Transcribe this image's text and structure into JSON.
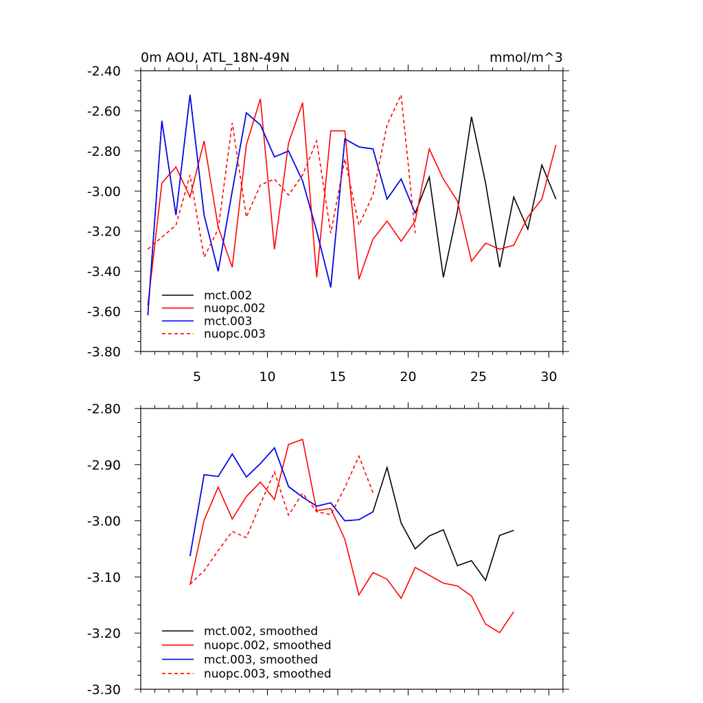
{
  "chart_data": [
    {
      "type": "line",
      "title_left": "0m AOU, ATL_18N-49N",
      "title_right": "mmol/m^3",
      "xlabel": "",
      "ylabel": "",
      "xlim": [
        1,
        31
      ],
      "ylim": [
        -3.8,
        -2.4
      ],
      "x_ticks": [
        5,
        10,
        15,
        20,
        25,
        30
      ],
      "x_tick_labels": [
        "5",
        "10",
        "15",
        "20",
        "25",
        "30"
      ],
      "y_ticks": [
        -2.4,
        -2.6,
        -2.8,
        -3.0,
        -3.2,
        -3.4,
        -3.6,
        -3.8
      ],
      "y_tick_labels": [
        "-2.40",
        "-2.60",
        "-2.80",
        "-3.00",
        "-3.20",
        "-3.40",
        "-3.60",
        "-3.80"
      ],
      "legend_position": "bottom-left",
      "series": [
        {
          "name": "mct.002",
          "color": "#000000",
          "dash": "solid",
          "x": [
            1.5,
            2.5,
            3.5,
            4.5,
            5.5,
            6.5,
            7.5,
            8.5,
            9.5,
            10.5,
            11.5,
            12.5,
            13.5,
            14.5,
            15.5,
            16.5,
            17.5,
            18.5,
            19.5,
            20.5,
            21.5,
            22.5,
            23.5,
            24.5,
            25.5,
            26.5,
            27.5,
            28.5,
            29.5,
            30.5
          ],
          "y": [
            -3.62,
            -2.65,
            -3.12,
            -2.52,
            -3.12,
            -3.4,
            -3.0,
            -2.61,
            -2.67,
            -2.83,
            -2.8,
            -2.95,
            -3.2,
            -3.48,
            -2.74,
            -2.78,
            -2.79,
            -3.04,
            -2.94,
            -3.11,
            -2.93,
            -3.43,
            -3.1,
            -2.63,
            -2.96,
            -3.38,
            -3.03,
            -3.19,
            -2.87,
            -3.04
          ]
        },
        {
          "name": "nuopc.002",
          "color": "#ff0000",
          "dash": "solid",
          "x": [
            1.5,
            2.5,
            3.5,
            4.5,
            5.5,
            6.5,
            7.5,
            8.5,
            9.5,
            10.5,
            11.5,
            12.5,
            13.5,
            14.5,
            15.5,
            16.5,
            17.5,
            18.5,
            19.5,
            20.5,
            21.5,
            22.5,
            23.5,
            24.5,
            25.5,
            26.5,
            27.5,
            28.5,
            29.5,
            30.5
          ],
          "y": [
            -3.57,
            -2.96,
            -2.88,
            -3.03,
            -2.75,
            -3.18,
            -3.38,
            -2.77,
            -2.54,
            -3.29,
            -2.76,
            -2.56,
            -3.43,
            -2.7,
            -2.7,
            -3.44,
            -3.24,
            -3.15,
            -3.25,
            -3.15,
            -2.79,
            -2.94,
            -3.05,
            -3.35,
            -3.26,
            -3.29,
            -3.27,
            -3.13,
            -3.04,
            -2.77
          ]
        },
        {
          "name": "mct.003",
          "color": "#0000ff",
          "dash": "solid",
          "x": [
            1.5,
            2.5,
            3.5,
            4.5,
            5.5,
            6.5,
            7.5,
            8.5,
            9.5,
            10.5,
            11.5,
            12.5,
            13.5,
            14.5,
            15.5,
            16.5,
            17.5,
            18.5,
            19.5,
            20.5
          ],
          "y": [
            -3.62,
            -2.65,
            -3.12,
            -2.52,
            -3.12,
            -3.4,
            -3.0,
            -2.61,
            -2.67,
            -2.83,
            -2.8,
            -2.95,
            -3.2,
            -3.48,
            -2.74,
            -2.78,
            -2.79,
            -3.04,
            -2.94,
            -3.11
          ]
        },
        {
          "name": "nuopc.003",
          "color": "#ff0000",
          "dash": "dashed",
          "x": [
            1.5,
            2.5,
            3.5,
            4.5,
            5.5,
            6.5,
            7.5,
            8.5,
            9.5,
            10.5,
            11.5,
            12.5,
            13.5,
            14.5,
            15.5,
            16.5,
            17.5,
            18.5,
            19.5,
            20.5
          ],
          "y": [
            -3.29,
            -3.23,
            -3.17,
            -2.92,
            -3.33,
            -3.19,
            -2.66,
            -3.13,
            -2.97,
            -2.94,
            -3.02,
            -2.92,
            -2.75,
            -3.21,
            -2.84,
            -3.17,
            -3.02,
            -2.67,
            -2.52,
            -3.21
          ]
        }
      ]
    },
    {
      "type": "line",
      "title": "",
      "xlabel": "",
      "ylabel": "",
      "xlim": [
        1,
        31
      ],
      "ylim": [
        -3.3,
        -2.8
      ],
      "x_ticks": [
        5,
        10,
        15,
        20,
        25,
        30
      ],
      "x_tick_labels": [],
      "y_ticks": [
        -2.8,
        -2.9,
        -3.0,
        -3.1,
        -3.2,
        -3.3
      ],
      "y_tick_labels": [
        "-2.80",
        "-2.90",
        "-3.00",
        "-3.10",
        "-3.20",
        "-3.30"
      ],
      "legend_position": "bottom-left",
      "series": [
        {
          "name": "mct.002, smoothed",
          "color": "#000000",
          "dash": "solid",
          "x": [
            4.5,
            5.5,
            6.5,
            7.5,
            8.5,
            9.5,
            10.5,
            11.5,
            12.5,
            13.5,
            14.5,
            15.5,
            16.5,
            17.5,
            18.5,
            19.5,
            20.5,
            21.5,
            22.5,
            23.5,
            24.5,
            25.5,
            26.5,
            27.5
          ],
          "y": [
            -3.063,
            -2.918,
            -2.921,
            -2.881,
            -2.922,
            -2.898,
            -2.87,
            -2.939,
            -2.958,
            -2.974,
            -2.968,
            -3.0,
            -2.998,
            -2.984,
            -2.905,
            -3.004,
            -3.05,
            -3.027,
            -3.016,
            -3.08,
            -3.071,
            -3.106,
            -3.026,
            -3.017
          ]
        },
        {
          "name": "nuopc.002, smoothed",
          "color": "#ff0000",
          "dash": "solid",
          "x": [
            4.5,
            5.5,
            6.5,
            7.5,
            8.5,
            9.5,
            10.5,
            11.5,
            12.5,
            13.5,
            14.5,
            15.5,
            16.5,
            17.5,
            18.5,
            19.5,
            20.5,
            21.5,
            22.5,
            23.5,
            24.5,
            25.5,
            26.5,
            27.5
          ],
          "y": [
            -3.114,
            -2.999,
            -2.94,
            -2.997,
            -2.957,
            -2.931,
            -2.962,
            -2.864,
            -2.855,
            -2.982,
            -2.978,
            -3.033,
            -3.132,
            -3.092,
            -3.104,
            -3.138,
            -3.083,
            -3.097,
            -3.111,
            -3.116,
            -3.134,
            -3.184,
            -3.199,
            -3.162
          ]
        },
        {
          "name": "mct.003, smoothed",
          "color": "#0000ff",
          "dash": "solid",
          "x": [
            4.5,
            5.5,
            6.5,
            7.5,
            8.5,
            9.5,
            10.5,
            11.5,
            12.5,
            13.5,
            14.5,
            15.5,
            16.5,
            17.5
          ],
          "y": [
            -3.063,
            -2.918,
            -2.921,
            -2.881,
            -2.922,
            -2.898,
            -2.87,
            -2.939,
            -2.958,
            -2.974,
            -2.968,
            -3.0,
            -2.998,
            -2.984
          ]
        },
        {
          "name": "nuopc.003, smoothed",
          "color": "#ff0000",
          "dash": "dashed",
          "x": [
            4.5,
            5.5,
            6.5,
            7.5,
            8.5,
            9.5,
            10.5,
            11.5,
            12.5,
            13.5,
            14.5,
            15.5,
            16.5,
            17.5
          ],
          "y": [
            -3.113,
            -3.089,
            -3.053,
            -3.019,
            -3.03,
            -2.97,
            -2.913,
            -2.99,
            -2.951,
            -2.984,
            -2.989,
            -2.941,
            -2.885,
            -2.95
          ]
        }
      ]
    }
  ]
}
